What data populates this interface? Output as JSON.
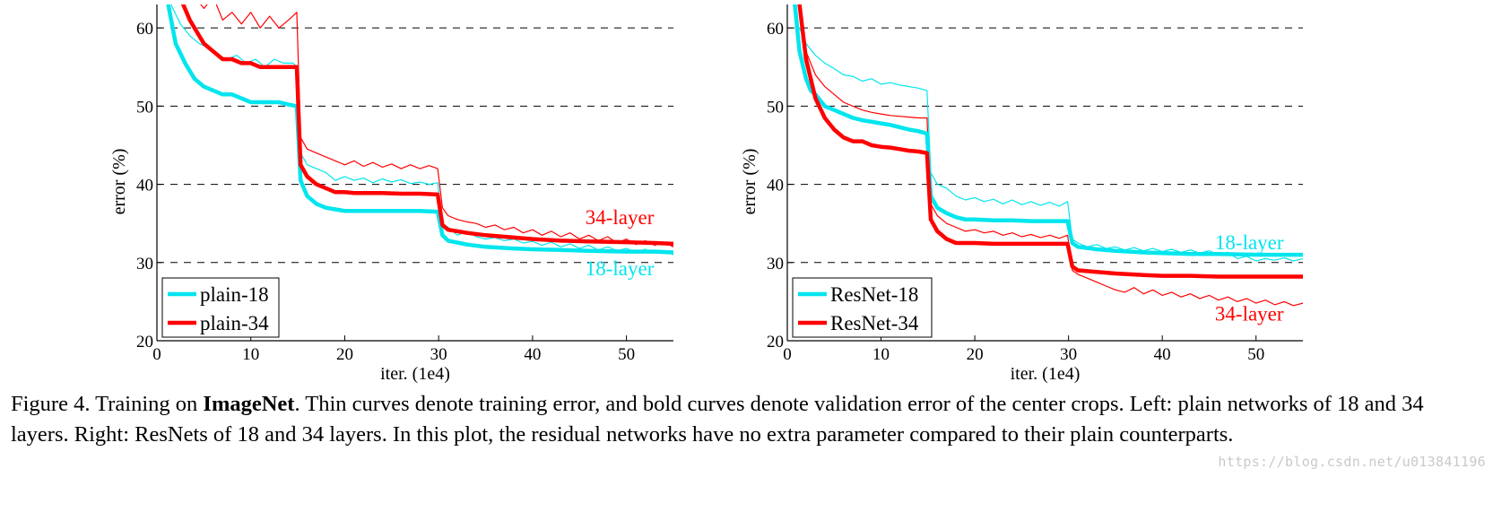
{
  "chart_data": [
    {
      "type": "line",
      "title": "",
      "xlabel": "iter. (1e4)",
      "ylabel": "error (%)",
      "xlim": [
        0,
        55
      ],
      "ylim": [
        20,
        63
      ],
      "xticks": [
        0,
        10,
        20,
        30,
        40,
        50
      ],
      "yticks": [
        20,
        30,
        40,
        50,
        60
      ],
      "grid": "dashed horizontal lines at 30, 40, 50, 60",
      "legend_position": "bottom-left",
      "annotations": [
        {
          "text": "34-layer",
          "color": "#ff0000",
          "x": 46,
          "y": 35.8
        },
        {
          "text": "18-layer",
          "color": "#00e5ee",
          "x": 46,
          "y": 29.3
        }
      ],
      "series": [
        {
          "name": "plain-18",
          "kind": "validation",
          "weight": "bold",
          "color": "#00e5ee",
          "x": [
            1.2,
            2,
            3,
            4,
            5,
            6,
            7,
            8,
            9,
            10,
            11,
            12,
            13,
            14,
            14.9,
            15.3,
            16,
            17,
            18,
            19,
            20,
            22,
            24,
            26,
            28,
            29.9,
            30.4,
            31,
            33,
            35,
            38,
            40,
            43,
            46,
            50,
            53,
            55
          ],
          "y": [
            63,
            58,
            55.5,
            53.5,
            52.5,
            52,
            51.5,
            51.5,
            51,
            50.5,
            50.5,
            50.5,
            50.5,
            50.2,
            50,
            40.5,
            38.5,
            37.5,
            37,
            36.8,
            36.6,
            36.6,
            36.6,
            36.6,
            36.6,
            36.5,
            33.5,
            32.8,
            32.3,
            32,
            31.8,
            31.7,
            31.6,
            31.5,
            31.4,
            31.4,
            31.3
          ]
        },
        {
          "name": "plain-34",
          "kind": "validation",
          "weight": "bold",
          "color": "#ff0000",
          "x": [
            2.8,
            3.5,
            4.5,
            5,
            6,
            7,
            8,
            9,
            10,
            11,
            12,
            13,
            14,
            14.9,
            15.3,
            16,
            17,
            18,
            19,
            20,
            21,
            22,
            24,
            26,
            28,
            29.9,
            30.4,
            31,
            33,
            35,
            38,
            40,
            43,
            46,
            50,
            53,
            55
          ],
          "y": [
            63,
            61,
            59,
            58,
            57,
            56,
            56,
            55.5,
            55.5,
            55,
            55,
            55,
            55,
            55,
            42.5,
            41,
            40,
            39.5,
            39,
            39,
            38.9,
            38.9,
            38.9,
            38.8,
            38.8,
            38.7,
            34.8,
            34.2,
            33.8,
            33.5,
            33.2,
            33,
            32.8,
            32.7,
            32.6,
            32.5,
            32.4
          ]
        },
        {
          "name": "",
          "kind": "training",
          "weight": "thin",
          "color": "#00e5ee",
          "x": [
            1.5,
            2.5,
            3.5,
            4.5,
            5.5,
            6.5,
            7.5,
            8.5,
            9.5,
            10.5,
            11.5,
            12.5,
            13.5,
            14.5,
            14.9,
            15.3,
            16,
            17,
            18,
            19,
            20,
            21,
            22,
            23,
            24,
            25,
            26,
            27,
            28,
            29,
            29.9,
            30.4,
            31,
            32,
            33,
            34,
            35,
            36,
            37,
            38,
            39,
            40,
            41,
            42,
            43,
            44,
            45,
            46,
            47,
            48,
            49,
            50,
            51,
            52,
            53,
            54,
            55
          ],
          "y": [
            63,
            60.5,
            59,
            58,
            57.5,
            56.5,
            56,
            56.5,
            55.5,
            56,
            55,
            56,
            55.5,
            55.5,
            55,
            44,
            42.5,
            42,
            41.5,
            40.5,
            41,
            40.5,
            40.8,
            40.2,
            40.7,
            40.3,
            40.6,
            40.1,
            40.3,
            40,
            40.2,
            35,
            34.5,
            33.5,
            34,
            33.3,
            33,
            33.2,
            32.8,
            33,
            32.5,
            32.7,
            32.2,
            32.6,
            32,
            32.4,
            31.8,
            32.2,
            31.6,
            32,
            31.5,
            31.8,
            31.3,
            31.7,
            31.2,
            31.5,
            31
          ]
        },
        {
          "name": "",
          "kind": "training",
          "weight": "thin",
          "color": "#ff0000",
          "x": [
            3,
            4,
            5,
            6,
            7,
            8,
            9,
            10,
            11,
            12,
            13,
            14,
            14.9,
            15.3,
            16,
            17,
            18,
            19,
            20,
            21,
            22,
            23,
            24,
            25,
            26,
            27,
            28,
            29,
            29.9,
            30.4,
            31,
            32,
            33,
            34,
            35,
            36,
            37,
            38,
            39,
            40,
            41,
            42,
            43,
            44,
            45,
            46,
            47,
            48,
            49,
            50,
            51,
            52,
            53,
            54,
            55
          ],
          "y": [
            63,
            64,
            62.5,
            64,
            61,
            62,
            60.5,
            62,
            60,
            61.5,
            60,
            61,
            62,
            46,
            44.5,
            44,
            43.5,
            43,
            42.5,
            43,
            42.3,
            42.8,
            42.2,
            42.6,
            42,
            42.5,
            42,
            42.4,
            42,
            37,
            36,
            35.5,
            35.2,
            35,
            34.5,
            34.8,
            34.2,
            34.5,
            33.8,
            34.2,
            33.5,
            34,
            33.3,
            33.8,
            33,
            33.5,
            32.8,
            33.3,
            32.5,
            33,
            32.3,
            32.8,
            32.2,
            32.6,
            32
          ]
        }
      ]
    },
    {
      "type": "line",
      "title": "",
      "xlabel": "iter. (1e4)",
      "ylabel": "error (%)",
      "xlim": [
        0,
        55
      ],
      "ylim": [
        20,
        63
      ],
      "xticks": [
        0,
        10,
        20,
        30,
        40,
        50
      ],
      "yticks": [
        20,
        30,
        40,
        50,
        60
      ],
      "grid": "dashed horizontal lines at 30, 40, 50, 60",
      "legend_position": "bottom-left",
      "annotations": [
        {
          "text": "18-layer",
          "color": "#00e5ee",
          "x": 46,
          "y": 32.6
        },
        {
          "text": "34-layer",
          "color": "#ff0000",
          "x": 46,
          "y": 23.5
        }
      ],
      "series": [
        {
          "name": "ResNet-18",
          "kind": "validation",
          "weight": "bold",
          "color": "#00e5ee",
          "x": [
            0.8,
            1.3,
            2,
            2.5,
            3,
            4,
            5,
            6,
            7,
            8,
            9,
            10,
            11,
            12,
            13,
            14,
            14.9,
            15.3,
            16,
            17,
            18,
            19,
            20,
            22,
            24,
            26,
            28,
            29.9,
            30.4,
            31,
            33,
            35,
            38,
            40,
            43,
            46,
            50,
            53,
            55
          ],
          "y": [
            63,
            57,
            53.5,
            52,
            51.5,
            50,
            49.5,
            49,
            48.5,
            48.2,
            48,
            47.8,
            47.6,
            47.3,
            47,
            46.8,
            46.5,
            38.5,
            37,
            36.3,
            35.8,
            35.5,
            35.5,
            35.4,
            35.4,
            35.3,
            35.3,
            35.3,
            32.5,
            32,
            31.7,
            31.5,
            31.3,
            31.2,
            31.1,
            31.1,
            31,
            31,
            31
          ]
        },
        {
          "name": "ResNet-34",
          "kind": "validation",
          "weight": "bold",
          "color": "#ff0000",
          "x": [
            1.3,
            2,
            3,
            4,
            5,
            6,
            7,
            8,
            9,
            10,
            11,
            12,
            13,
            14,
            14.9,
            15.3,
            16,
            17,
            18,
            19,
            20,
            22,
            24,
            26,
            28,
            29.9,
            30.4,
            31,
            33,
            35,
            38,
            40,
            43,
            46,
            50,
            53,
            55
          ],
          "y": [
            63,
            56,
            51,
            48.5,
            47,
            46,
            45.5,
            45.5,
            45,
            44.8,
            44.7,
            44.5,
            44.3,
            44.2,
            44,
            35.5,
            34,
            33,
            32.5,
            32.5,
            32.5,
            32.4,
            32.4,
            32.4,
            32.4,
            32.4,
            29.5,
            29,
            28.8,
            28.6,
            28.4,
            28.3,
            28.3,
            28.2,
            28.2,
            28.2,
            28.2
          ]
        },
        {
          "name": "",
          "kind": "training",
          "weight": "thin",
          "color": "#00e5ee",
          "x": [
            1.3,
            2,
            3,
            4,
            5,
            6,
            7,
            8,
            9,
            10,
            11,
            12,
            13,
            14,
            14.9,
            15.3,
            16,
            17,
            18,
            19,
            20,
            21,
            22,
            23,
            24,
            25,
            26,
            27,
            28,
            29,
            29.9,
            30.4,
            31,
            32,
            33,
            34,
            35,
            36,
            37,
            38,
            39,
            40,
            41,
            42,
            43,
            44,
            45,
            46,
            47,
            48,
            49,
            50,
            51,
            52,
            53,
            54,
            55
          ],
          "y": [
            60,
            58,
            56.5,
            55.5,
            54.8,
            54,
            53.8,
            53.2,
            53.5,
            52.8,
            53,
            52.7,
            52.5,
            52.3,
            52,
            41.5,
            40,
            39.5,
            38.5,
            38,
            38.3,
            37.8,
            38.1,
            37.5,
            38,
            37.4,
            37.8,
            37.3,
            37.7,
            37.2,
            37.8,
            33,
            32.5,
            32,
            32.3,
            31.8,
            32,
            31.6,
            31.9,
            31.5,
            31.8,
            31.4,
            31.7,
            31.3,
            31.6,
            31.2,
            31.5,
            31,
            31.3,
            30.5,
            30.8,
            30.2,
            30.5,
            30.3,
            30.6,
            30.2,
            30.5
          ]
        },
        {
          "name": "",
          "kind": "training",
          "weight": "thin",
          "color": "#ff0000",
          "x": [
            1.5,
            2,
            3,
            4,
            5,
            6,
            7,
            8,
            9,
            10,
            11,
            12,
            13,
            14,
            14.9,
            15.3,
            16,
            17,
            18,
            19,
            20,
            21,
            22,
            23,
            24,
            25,
            26,
            27,
            28,
            29,
            29.9,
            30.4,
            31,
            32,
            33,
            34,
            35,
            36,
            37,
            38,
            39,
            40,
            41,
            42,
            43,
            44,
            45,
            46,
            47,
            48,
            49,
            50,
            51,
            52,
            53,
            54,
            55
          ],
          "y": [
            60,
            57,
            54,
            52.5,
            51.5,
            50.5,
            50,
            49.5,
            49.2,
            49,
            48.8,
            48.7,
            48.6,
            48.5,
            48.5,
            37.5,
            36,
            35,
            34.5,
            34,
            34.2,
            33.8,
            34,
            33.5,
            33.8,
            33.3,
            33.6,
            33.2,
            33.5,
            33.1,
            33.5,
            29,
            28.5,
            28,
            27.5,
            27,
            26.5,
            26.2,
            26.8,
            26,
            26.5,
            25.8,
            26.2,
            25.6,
            26,
            25.4,
            25.8,
            25.2,
            25.6,
            25,
            25.4,
            24.8,
            25.2,
            24.6,
            25,
            24.5,
            24.8
          ]
        }
      ]
    }
  ],
  "caption": {
    "prefix": "Figure 4. Training on ",
    "bold": "ImageNet",
    "rest": ". Thin curves denote training error, and bold curves denote validation error of the center crops. Left: plain networks of 18 and 34 layers. Right: ResNets of 18 and 34 layers. In this plot, the residual networks have no extra parameter compared to their plain counterparts."
  },
  "watermark": "https://blog.csdn.net/u013841196"
}
